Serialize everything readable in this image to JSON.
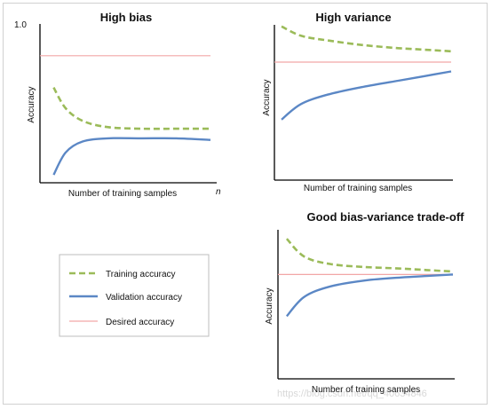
{
  "colors": {
    "training": "#9bbb59",
    "validation": "#5b87c5",
    "desired": "#f2a6a6",
    "axis": "#000000"
  },
  "watermark": "https://blog.csdn.net/qq_40634846",
  "legend": {
    "items": [
      {
        "key": "training",
        "label": "Training accuracy",
        "style": "dashed"
      },
      {
        "key": "validation",
        "label": "Validation accuracy",
        "style": "solid"
      },
      {
        "key": "desired",
        "label": "Desired accuracy",
        "style": "thin"
      }
    ]
  },
  "chart_data": [
    {
      "type": "line",
      "title": "High bias",
      "xlabel": "Number of training samples",
      "ylabel": "Accuracy",
      "y_tick_label": "1.0",
      "x_end_label": "n",
      "xlim": [
        0,
        1
      ],
      "ylim": [
        0,
        1
      ],
      "grid": false,
      "series": [
        {
          "key": "training",
          "x": [
            0.08,
            0.15,
            0.25,
            0.4,
            0.6,
            0.8,
            1.0
          ],
          "y": [
            0.6,
            0.47,
            0.39,
            0.35,
            0.34,
            0.34,
            0.34
          ]
        },
        {
          "key": "validation",
          "x": [
            0.08,
            0.15,
            0.25,
            0.4,
            0.6,
            0.8,
            1.0
          ],
          "y": [
            0.05,
            0.19,
            0.26,
            0.28,
            0.28,
            0.28,
            0.27
          ]
        },
        {
          "key": "desired",
          "x": [
            0.0,
            1.0
          ],
          "y": [
            0.8,
            0.8
          ]
        }
      ]
    },
    {
      "type": "line",
      "title": "High variance",
      "xlabel": "Number of training samples",
      "ylabel": "Accuracy",
      "xlim": [
        0,
        1
      ],
      "ylim": [
        0,
        1
      ],
      "grid": false,
      "series": [
        {
          "key": "training",
          "x": [
            0.04,
            0.15,
            0.3,
            0.5,
            0.7,
            0.85,
            1.0
          ],
          "y": [
            0.99,
            0.93,
            0.9,
            0.87,
            0.85,
            0.84,
            0.83
          ]
        },
        {
          "key": "validation",
          "x": [
            0.04,
            0.15,
            0.3,
            0.5,
            0.7,
            0.85,
            1.0
          ],
          "y": [
            0.39,
            0.49,
            0.55,
            0.6,
            0.64,
            0.67,
            0.7
          ]
        },
        {
          "key": "desired",
          "x": [
            0.0,
            1.0
          ],
          "y": [
            0.76,
            0.76
          ]
        }
      ]
    },
    {
      "type": "line",
      "title": "Good bias-variance trade-off",
      "xlabel": "Number of training samples",
      "ylabel": "Accuracy",
      "xlim": [
        0,
        1
      ],
      "ylim": [
        0,
        1
      ],
      "grid": false,
      "series": [
        {
          "key": "training",
          "x": [
            0.05,
            0.15,
            0.3,
            0.5,
            0.7,
            0.85,
            1.0
          ],
          "y": [
            0.94,
            0.82,
            0.77,
            0.75,
            0.74,
            0.73,
            0.72
          ]
        },
        {
          "key": "validation",
          "x": [
            0.05,
            0.15,
            0.3,
            0.5,
            0.7,
            0.85,
            1.0
          ],
          "y": [
            0.42,
            0.55,
            0.62,
            0.66,
            0.68,
            0.69,
            0.7
          ]
        },
        {
          "key": "desired",
          "x": [
            0.0,
            1.0
          ],
          "y": [
            0.7,
            0.7
          ]
        }
      ]
    }
  ]
}
